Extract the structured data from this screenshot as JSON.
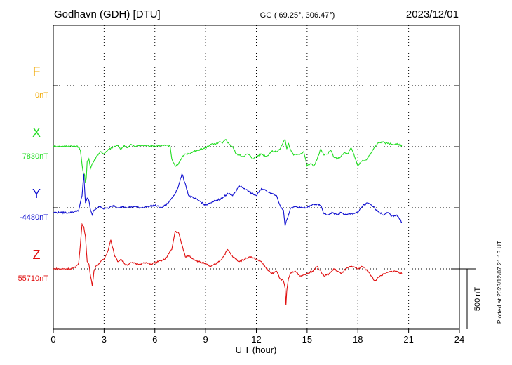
{
  "chart_data": {
    "type": "line",
    "title_left": "Godhavn (GDH)  [DTU]",
    "title_center": "GG ( 69.25°, 306.47°)",
    "title_right": "2023/12/01",
    "xlabel": "U T (hour)",
    "xlim": [
      0,
      24
    ],
    "x_ticks": [
      "0",
      "3",
      "6",
      "9",
      "12",
      "15",
      "18",
      "21",
      "24"
    ],
    "grid": true,
    "scale_bar_label": "500 nT",
    "plotted_note": "Plotted at 2023/12/07 21:13 UT",
    "colors": {
      "F": "#f0a800",
      "X": "#22dd22",
      "Y": "#1010d0",
      "Z": "#e01010"
    },
    "series": [
      {
        "name": "F",
        "baseline_label": "0nT",
        "values": []
      },
      {
        "name": "X",
        "baseline_label": "7830nT",
        "x": [
          0.0,
          0.5,
          1.0,
          1.3,
          1.5,
          1.6,
          1.7,
          1.8,
          1.85,
          1.9,
          1.95,
          2.0,
          2.1,
          2.2,
          2.3,
          2.4,
          2.6,
          2.8,
          3.0,
          3.3,
          3.6,
          3.8,
          4.0,
          4.2,
          4.4,
          4.6,
          4.8,
          5.0,
          5.3,
          5.6,
          6.0,
          6.3,
          6.6,
          6.9,
          7.0,
          7.2,
          7.4,
          7.6,
          7.8,
          8.0,
          8.3,
          8.6,
          9.0,
          9.3,
          9.6,
          9.8,
          10.0,
          10.2,
          10.4,
          10.6,
          10.8,
          11.0,
          11.2,
          11.5,
          11.8,
          12.0,
          12.3,
          12.6,
          12.9,
          13.2,
          13.4,
          13.6,
          13.7,
          13.8,
          13.9,
          14.0,
          14.2,
          14.4,
          14.6,
          14.8,
          15.0,
          15.2,
          15.4,
          15.6,
          15.8,
          16.0,
          16.2,
          16.4,
          16.6,
          16.8,
          17.0,
          17.2,
          17.4,
          17.6,
          17.8,
          18.0,
          18.2,
          18.5,
          18.8,
          19.0,
          19.2,
          19.4,
          19.6,
          19.8,
          20.0,
          20.2,
          20.4,
          20.6
        ],
        "values": [
          5,
          3,
          5,
          3,
          0,
          -30,
          -150,
          -250,
          -230,
          -300,
          -260,
          -120,
          -100,
          -180,
          -140,
          -120,
          -70,
          -40,
          -60,
          -20,
          0,
          10,
          -20,
          10,
          -10,
          20,
          0,
          10,
          10,
          10,
          5,
          10,
          10,
          5,
          -100,
          -160,
          -140,
          -90,
          -60,
          -60,
          -40,
          -30,
          -10,
          20,
          20,
          40,
          30,
          60,
          20,
          0,
          -60,
          -70,
          -80,
          -60,
          -100,
          -80,
          -60,
          -80,
          -40,
          -40,
          -20,
          40,
          60,
          -20,
          30,
          -20,
          -70,
          -60,
          -60,
          -40,
          -160,
          -140,
          -160,
          -100,
          -20,
          -70,
          -60,
          -30,
          -90,
          -100,
          -80,
          -50,
          -60,
          -10,
          -80,
          -160,
          -120,
          -110,
          -50,
          0,
          30,
          40,
          30,
          30,
          20,
          20,
          20,
          10
        ]
      },
      {
        "name": "Y",
        "baseline_label": "-4480nT",
        "x": [
          0.0,
          0.5,
          1.0,
          1.3,
          1.5,
          1.7,
          1.8,
          1.85,
          1.9,
          2.0,
          2.1,
          2.2,
          2.3,
          2.4,
          2.6,
          2.8,
          3.0,
          3.3,
          3.6,
          3.8,
          4.0,
          4.4,
          4.8,
          5.2,
          5.6,
          6.0,
          6.4,
          6.8,
          7.0,
          7.2,
          7.4,
          7.6,
          7.8,
          8.0,
          8.3,
          8.6,
          9.0,
          9.3,
          9.6,
          10.0,
          10.3,
          10.6,
          11.0,
          11.3,
          11.6,
          12.0,
          12.3,
          12.6,
          12.9,
          13.2,
          13.4,
          13.6,
          13.7,
          13.8,
          13.9,
          14.0,
          14.3,
          14.6,
          15.0,
          15.4,
          15.8,
          16.0,
          16.2,
          16.5,
          16.8,
          17.0,
          17.3,
          17.6,
          18.0,
          18.3,
          18.6,
          18.9,
          19.2,
          19.5,
          19.8,
          20.0,
          20.3,
          20.6
        ],
        "values": [
          -40,
          -40,
          -40,
          -30,
          -20,
          100,
          280,
          160,
          40,
          80,
          60,
          -20,
          -60,
          -20,
          0,
          10,
          -10,
          0,
          20,
          0,
          10,
          0,
          10,
          0,
          10,
          20,
          0,
          40,
          80,
          120,
          180,
          280,
          200,
          100,
          80,
          60,
          20,
          40,
          60,
          80,
          120,
          100,
          180,
          160,
          130,
          100,
          160,
          140,
          120,
          100,
          20,
          -20,
          -150,
          -100,
          -60,
          -10,
          10,
          0,
          0,
          30,
          20,
          -50,
          -60,
          -40,
          -60,
          -40,
          -60,
          -50,
          -40,
          20,
          40,
          10,
          -30,
          -60,
          -40,
          -70,
          -60,
          -120
        ]
      },
      {
        "name": "Z",
        "baseline_label": "55710nT",
        "x": [
          0.0,
          0.5,
          1.0,
          1.3,
          1.5,
          1.6,
          1.7,
          1.8,
          1.9,
          2.0,
          2.1,
          2.2,
          2.3,
          2.4,
          2.5,
          2.6,
          2.8,
          3.0,
          3.2,
          3.4,
          3.6,
          3.8,
          4.0,
          4.3,
          4.6,
          5.0,
          5.4,
          5.8,
          6.2,
          6.6,
          7.0,
          7.2,
          7.4,
          7.6,
          7.8,
          8.0,
          8.3,
          8.6,
          9.0,
          9.3,
          9.6,
          10.0,
          10.3,
          10.6,
          11.0,
          11.3,
          11.6,
          12.0,
          12.3,
          12.6,
          12.9,
          13.2,
          13.4,
          13.6,
          13.7,
          13.75,
          13.8,
          13.9,
          14.0,
          14.3,
          14.6,
          15.0,
          15.3,
          15.6,
          16.0,
          16.3,
          16.6,
          17.0,
          17.3,
          17.6,
          18.0,
          18.3,
          18.6,
          19.0,
          19.3,
          19.6,
          20.0,
          20.3,
          20.6
        ],
        "values": [
          0,
          0,
          0,
          10,
          50,
          200,
          370,
          350,
          270,
          60,
          40,
          -60,
          -140,
          -20,
          20,
          30,
          60,
          80,
          140,
          240,
          120,
          60,
          80,
          30,
          50,
          40,
          50,
          40,
          60,
          80,
          160,
          310,
          300,
          200,
          100,
          110,
          80,
          60,
          40,
          20,
          40,
          90,
          160,
          100,
          60,
          80,
          100,
          80,
          60,
          0,
          -40,
          -20,
          -80,
          -100,
          -160,
          -300,
          -180,
          -80,
          -40,
          -20,
          -60,
          -40,
          -20,
          20,
          -60,
          -40,
          0,
          -40,
          0,
          20,
          0,
          20,
          -20,
          -100,
          -60,
          -40,
          -20,
          -20,
          -40
        ]
      }
    ]
  }
}
